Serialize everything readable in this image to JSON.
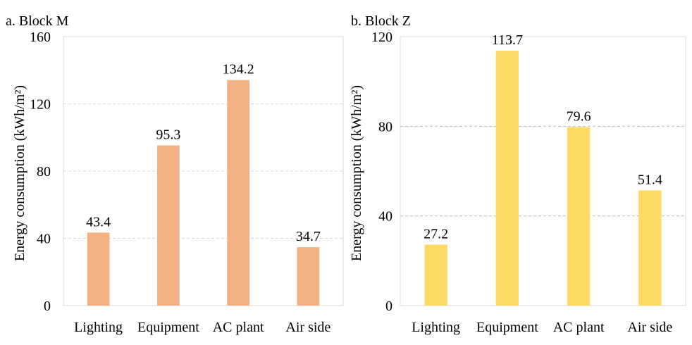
{
  "chart_data": [
    {
      "type": "bar",
      "title": "a. Block M",
      "ylabel": "Energy consumption (kWh/m²)",
      "xlabel": "",
      "categories": [
        "Lighting",
        "Equipment",
        "AC plant",
        "Air side"
      ],
      "values": [
        43.4,
        95.3,
        134.2,
        34.7
      ],
      "data_labels": [
        "43.4",
        "95.3",
        "134.2",
        "34.7"
      ],
      "ylim": [
        0,
        160
      ],
      "yticks": [
        0,
        40,
        80,
        120,
        160
      ],
      "grid": true,
      "bar_color": "#F4B183"
    },
    {
      "type": "bar",
      "title": "b. Block Z",
      "ylabel": "Energy consumption (kWh/m²)",
      "xlabel": "",
      "categories": [
        "Lighting",
        "Equipment",
        "AC plant",
        "Air side"
      ],
      "values": [
        27.2,
        113.7,
        79.6,
        51.4
      ],
      "data_labels": [
        "27.2",
        "113.7",
        "79.6",
        "51.4"
      ],
      "ylim": [
        0,
        120
      ],
      "yticks": [
        0,
        40,
        80,
        120
      ],
      "grid": true,
      "bar_color": "#FFD966"
    }
  ]
}
